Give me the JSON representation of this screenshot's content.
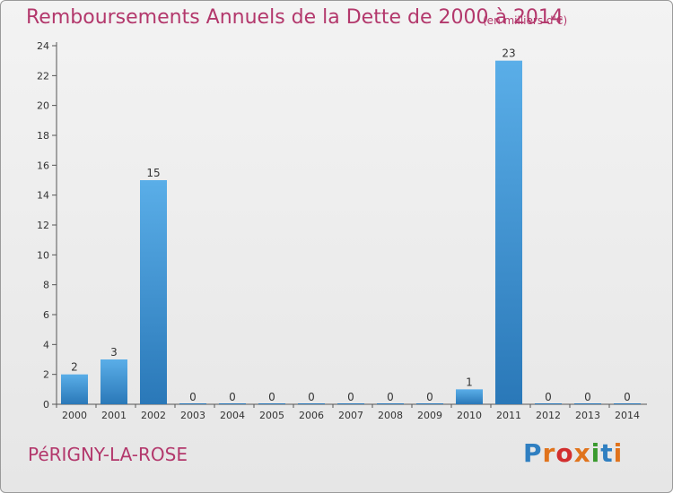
{
  "header": {
    "title": "Remboursements Annuels de la Dette de 2000 à 2014",
    "subtitle": "(en milliers d'€)"
  },
  "footer": {
    "commune": "PéRIGNY-LA-ROSE",
    "logo_letters": [
      "P",
      "r",
      "o",
      "x",
      "i",
      "t",
      "i"
    ]
  },
  "colors": {
    "title": "#b3386c",
    "bar_light": "#5aaee8",
    "bar_dark": "#2a78b8",
    "logo": [
      "#2f7fc1",
      "#e0731c",
      "#d22e2e",
      "#e0731c",
      "#3a9a2e",
      "#2f7fc1",
      "#e0731c"
    ]
  },
  "chart_data": {
    "type": "bar",
    "categories": [
      "2000",
      "2001",
      "2002",
      "2003",
      "2004",
      "2005",
      "2006",
      "2007",
      "2008",
      "2009",
      "2010",
      "2011",
      "2012",
      "2013",
      "2014"
    ],
    "values": [
      2,
      3,
      15,
      0,
      0,
      0,
      0,
      0,
      0,
      0,
      1,
      23,
      0,
      0,
      0
    ],
    "title": "Remboursements Annuels de la Dette de 2000 à 2014",
    "xlabel": "",
    "ylabel": "",
    "ylim": [
      0,
      24
    ],
    "yticks": [
      0,
      2,
      4,
      6,
      8,
      10,
      12,
      14,
      16,
      18,
      20,
      22,
      24
    ],
    "grid": false,
    "data_labels": true
  }
}
